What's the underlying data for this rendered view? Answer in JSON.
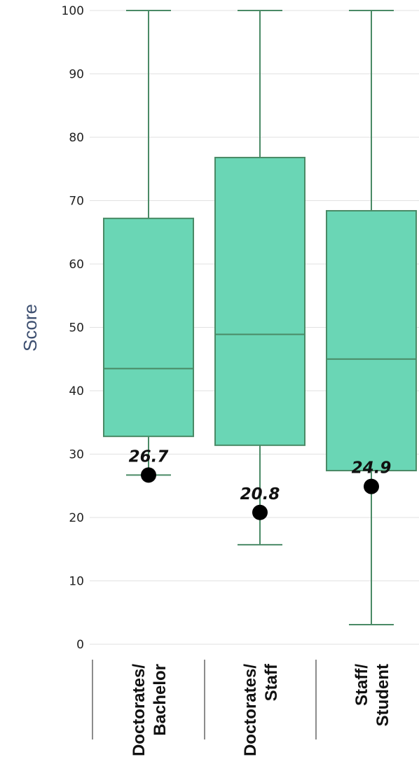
{
  "chart_data": {
    "type": "box",
    "ylabel": "Score",
    "ylim": [
      0,
      100
    ],
    "yticks": [
      0,
      10,
      20,
      30,
      40,
      50,
      60,
      70,
      80,
      90,
      100
    ],
    "grid": true,
    "box_color": "#6ad6b5",
    "box_stroke": "#4a8a66",
    "categories": [
      {
        "line1": "Doctorates/",
        "line2": "Bachelor"
      },
      {
        "line1": "Doctorates/",
        "line2": "Staff"
      },
      {
        "line1": "Staff/",
        "line2": "Student"
      }
    ],
    "boxes": [
      {
        "min": 26.7,
        "q1": 32.8,
        "median": 43.5,
        "q3": 67.2,
        "max": 100
      },
      {
        "min": 15.7,
        "q1": 31.4,
        "median": 48.9,
        "q3": 76.8,
        "max": 100
      },
      {
        "min": 3.1,
        "q1": 27.4,
        "median": 45.0,
        "q3": 68.4,
        "max": 100
      }
    ],
    "points": [
      {
        "value": 26.7,
        "label": "26.7"
      },
      {
        "value": 20.8,
        "label": "20.8"
      },
      {
        "value": 24.9,
        "label": "24.9"
      }
    ]
  }
}
